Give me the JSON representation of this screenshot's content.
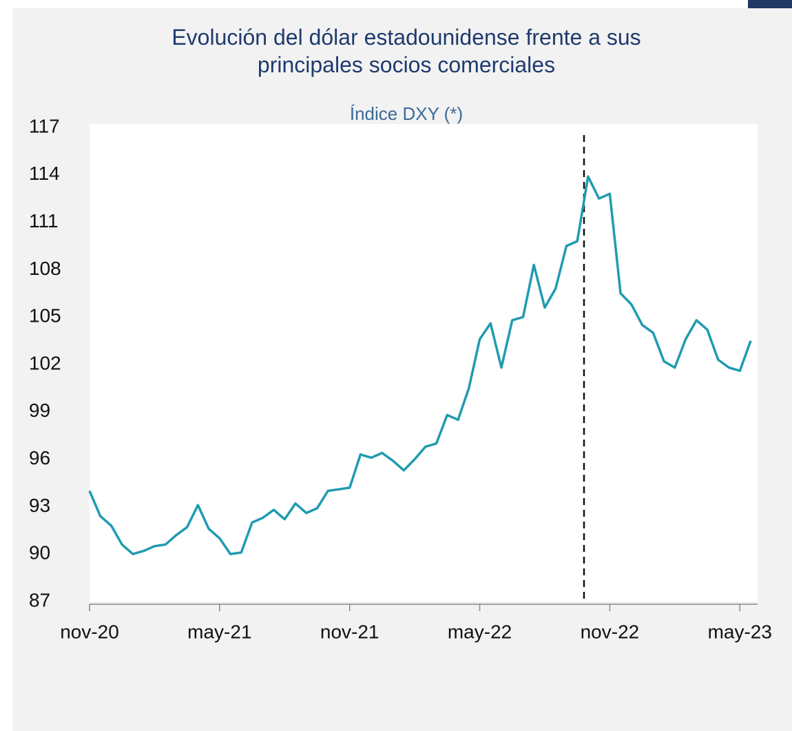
{
  "chart_data": {
    "type": "line",
    "title": "Evolución del dólar estadounidense frente a sus principales socios comerciales",
    "subtitle": "Índice DXY (*)",
    "categories": [
      "nov-20",
      null,
      null,
      null,
      null,
      null,
      null,
      null,
      null,
      null,
      null,
      null,
      "may-21",
      null,
      null,
      null,
      null,
      null,
      null,
      null,
      null,
      null,
      null,
      null,
      "nov-21",
      null,
      null,
      null,
      null,
      null,
      null,
      null,
      null,
      null,
      null,
      null,
      "may-22",
      null,
      null,
      null,
      null,
      null,
      null,
      null,
      null,
      null,
      null,
      null,
      "nov-22",
      null,
      null,
      null,
      null,
      null,
      null,
      null,
      null,
      null,
      null,
      null,
      "may-23",
      null
    ],
    "series": [
      {
        "name": "DXY",
        "color": "#1f9bb0",
        "values": [
          94.0,
          92.4,
          91.8,
          90.6,
          90.0,
          90.2,
          90.5,
          90.6,
          91.2,
          91.7,
          93.1,
          91.6,
          91.0,
          90.0,
          90.1,
          92.0,
          92.3,
          92.8,
          92.2,
          93.2,
          92.6,
          92.9,
          94.0,
          94.1,
          94.2,
          96.3,
          96.1,
          96.4,
          95.9,
          95.3,
          96.0,
          96.8,
          97.0,
          98.8,
          98.5,
          100.5,
          103.6,
          104.6,
          101.8,
          104.8,
          105.0,
          108.3,
          105.6,
          106.8,
          109.5,
          109.8,
          113.9,
          112.5,
          112.8,
          106.5,
          105.8,
          104.5,
          104.0,
          102.2,
          101.8,
          103.6,
          104.8,
          104.2,
          102.3,
          101.8,
          101.6,
          103.5
        ]
      }
    ],
    "ylim": [
      87,
      117
    ],
    "yticks": [
      87,
      90,
      93,
      96,
      99,
      102,
      105,
      108,
      111,
      114,
      117
    ],
    "grid": false
  }
}
